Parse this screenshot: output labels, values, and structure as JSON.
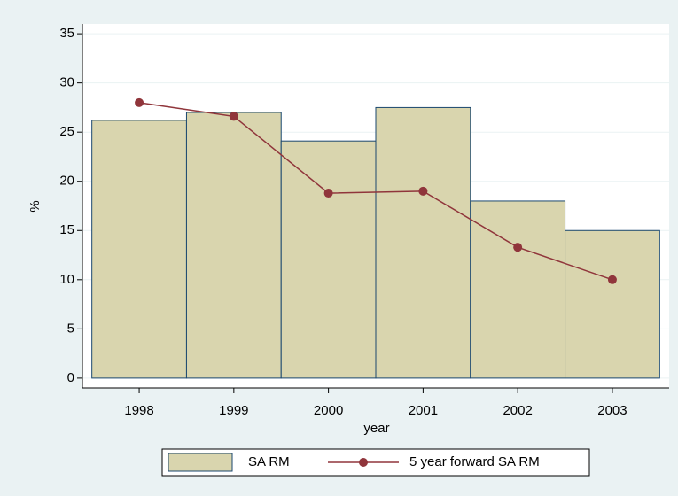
{
  "chart_data": {
    "type": "bar",
    "x_label": "year",
    "y_label": "%",
    "x": [
      1998,
      1999,
      2000,
      2001,
      2002,
      2003
    ],
    "series": [
      {
        "name": "SA RM",
        "type": "bar",
        "color": "#d9d5ae",
        "edge_color": "#1a476f",
        "values": [
          26.2,
          27.0,
          24.1,
          27.5,
          18.0,
          15.0
        ]
      },
      {
        "name": "5 year forward SA RM",
        "type": "line",
        "color": "#90353b",
        "values": [
          28.0,
          26.6,
          18.8,
          19.0,
          13.3,
          10.0
        ]
      }
    ],
    "xlim": [
      1997.4,
      2003.6
    ],
    "xticks": [
      1998,
      1999,
      2000,
      2001,
      2002,
      2003
    ],
    "ylim": [
      -1,
      36
    ],
    "yticks": [
      0,
      5,
      10,
      15,
      20,
      25,
      30,
      35
    ],
    "grid": true,
    "legend": "bottom"
  }
}
